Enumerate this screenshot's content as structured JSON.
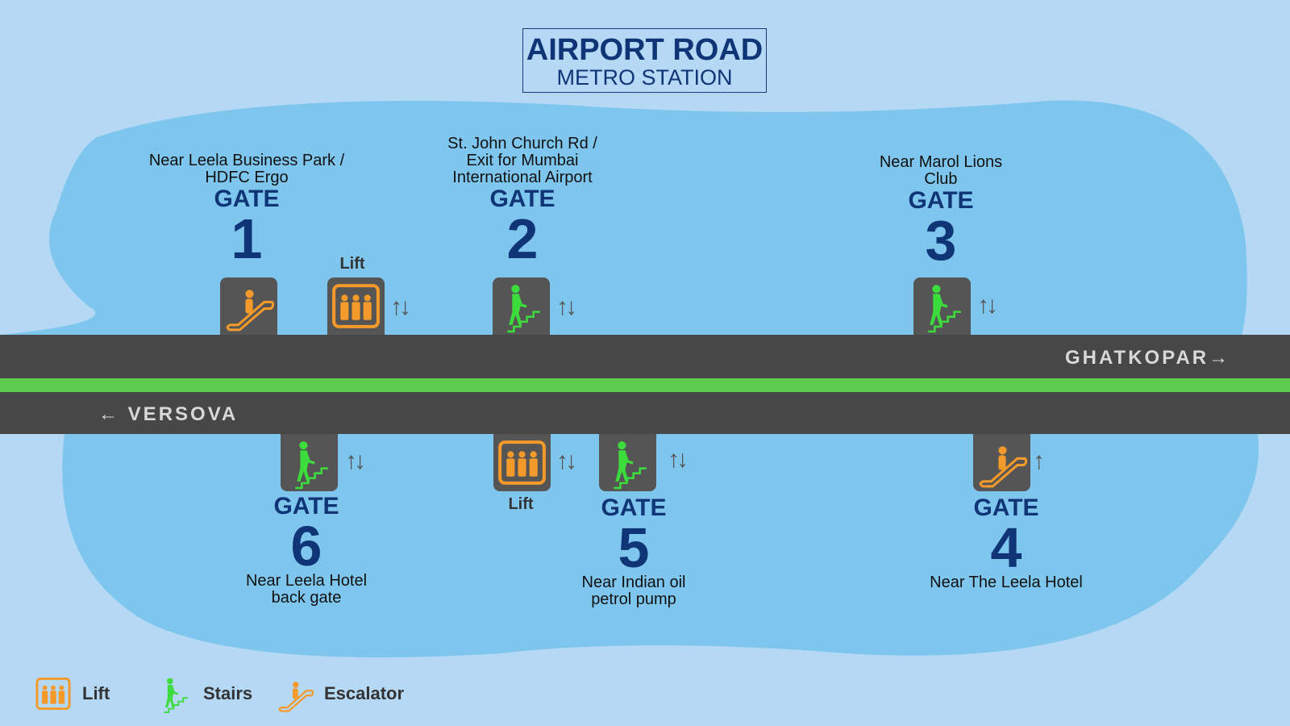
{
  "title": {
    "main": "AIRPORT ROAD",
    "sub": "METRO STATION"
  },
  "directions": {
    "east": "GHATKOPAR",
    "west": "VERSOVA",
    "east_arrow": "→",
    "west_arrow": "←"
  },
  "gates": [
    {
      "label": "GATE",
      "number": "1",
      "desc": [
        "Near Leela Business Park /",
        "HDFC Ergo"
      ],
      "facility": "escalator"
    },
    {
      "label": "GATE",
      "number": "2",
      "desc": [
        "St. John Church Rd /",
        "Exit for Mumbai",
        "International Airport"
      ],
      "facility": "stairs"
    },
    {
      "label": "GATE",
      "number": "3",
      "desc": [
        "Near Marol Lions",
        "Club"
      ],
      "facility": "stairs"
    },
    {
      "label": "GATE",
      "number": "4",
      "desc": [
        "Near The Leela Hotel"
      ],
      "facility": "escalator"
    },
    {
      "label": "GATE",
      "number": "5",
      "desc": [
        "Near Indian oil",
        "petrol pump"
      ],
      "facility": "stairs"
    },
    {
      "label": "GATE",
      "number": "6",
      "desc": [
        "Near Leela Hotel",
        "back gate"
      ],
      "facility": "stairs"
    }
  ],
  "lift_label": "Lift",
  "arrows": {
    "both": "↑↓",
    "up": "↑"
  },
  "legend": [
    {
      "icon": "lift-icon",
      "label": "Lift"
    },
    {
      "icon": "stairs-icon",
      "label": "Stairs"
    },
    {
      "icon": "escalator-icon",
      "label": "Escalator"
    }
  ],
  "colors": {
    "navy": "#0f3576",
    "track": "#474747",
    "line": "#5dcc4f",
    "orange": "#f39a2a",
    "stairs": "#3ddc3d",
    "water": "#7fc6ee"
  }
}
